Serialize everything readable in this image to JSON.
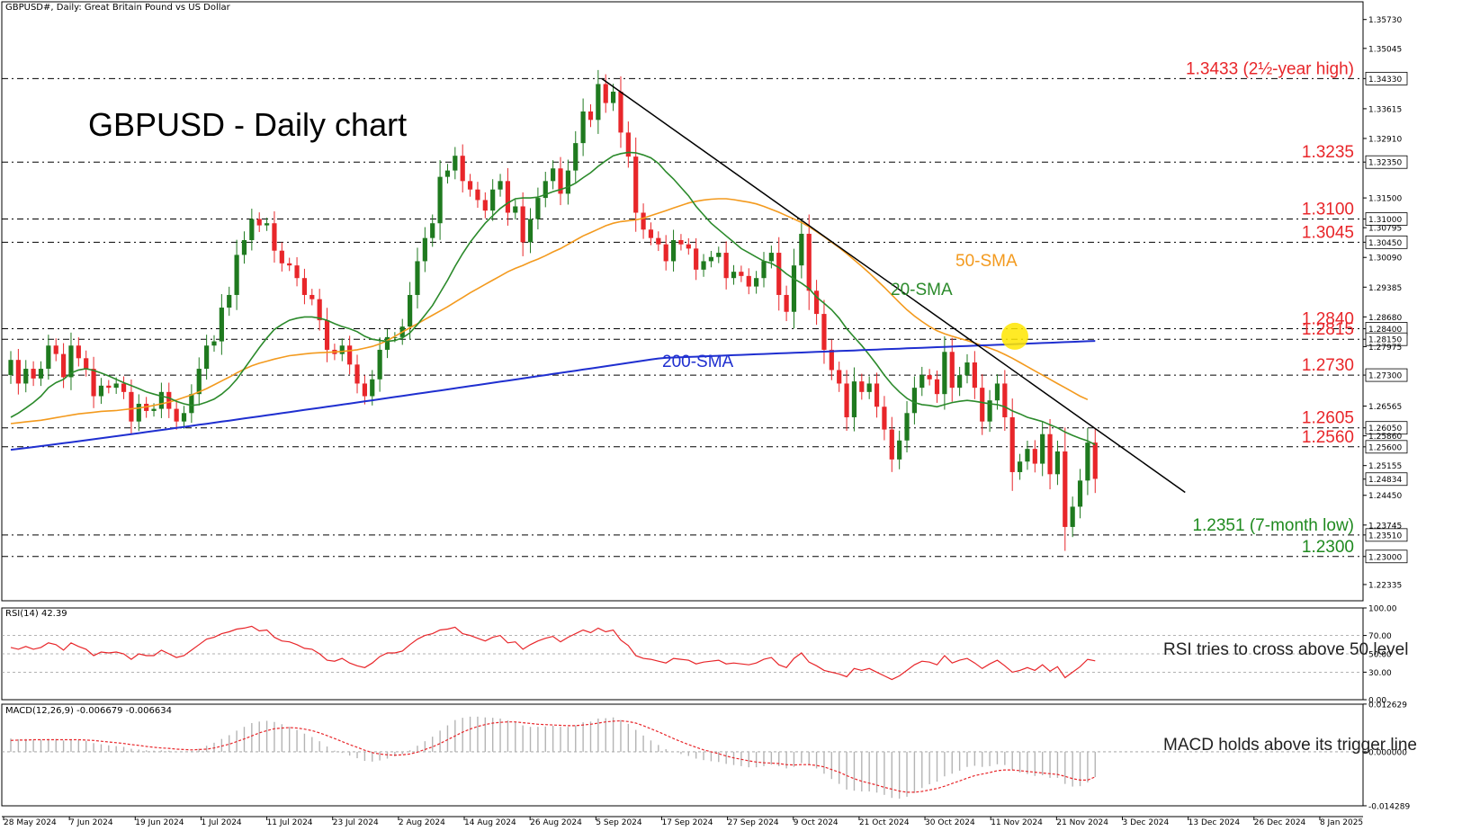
{
  "header": {
    "main": "GBPUSD#, Daily:  Great Britain Pound vs US Dollar",
    "rsi": "RSI(14) 42.39",
    "macd": "MACD(12,26,9) -0.006679 -0.006634"
  },
  "title": "GBPUSD - Daily chart",
  "annotations": {
    "sma20": "20-SMA",
    "sma50": "50-SMA",
    "sma200": "200-SMA",
    "rsi_note": "RSI tries to cross above 50 level",
    "macd_note": "MACD holds above its trigger line"
  },
  "colors": {
    "bull": "#1f7a1f",
    "bear": "#e8262a",
    "sma20": "#2b8a2b",
    "sma50": "#f39a1e",
    "sma200": "#1f2fd0",
    "level_red": "#e8262a",
    "level_green": "#1f8a1f",
    "rsi": "#e8262a",
    "macd_hist": "#b4b4b4",
    "macd_signal": "#e8262a",
    "highlight": "#ffe600"
  },
  "chart_data": {
    "type": "candlestick",
    "symbol": "GBPUSD#",
    "timeframe": "Daily",
    "ylim": [
      1.2195,
      1.3615
    ],
    "price_ticks": [
      "1.35730",
      "1.35045",
      "1.34330",
      "1.33615",
      "1.32910",
      "1.32350",
      "1.31500",
      "1.31000",
      "1.30795",
      "1.30450",
      "1.30090",
      "1.29385",
      "1.28680",
      "1.28400",
      "1.28150",
      "1.27975",
      "1.27300",
      "1.26565",
      "1.26050",
      "1.25860",
      "1.25600",
      "1.25155",
      "1.24834",
      "1.24450",
      "1.23745",
      "1.23510",
      "1.23000",
      "1.22335"
    ],
    "x_dates": [
      "28 May 2024",
      "7 Jun 2024",
      "19 Jun 2024",
      "1 Jul 2024",
      "11 Jul 2024",
      "23 Jul 2024",
      "2 Aug 2024",
      "14 Aug 2024",
      "26 Aug 2024",
      "5 Sep 2024",
      "17 Sep 2024",
      "27 Sep 2024",
      "9 Oct 2024",
      "21 Oct 2024",
      "30 Oct 2024",
      "11 Nov 2024",
      "21 Nov 2024",
      "3 Dec 2024",
      "13 Dec 2024",
      "26 Dec 2024",
      "8 Jan 2025"
    ],
    "levels": [
      {
        "value": 1.3433,
        "label": "1.3433 (2½-year high)",
        "color": "red"
      },
      {
        "value": 1.3235,
        "label": "1.3235",
        "color": "red"
      },
      {
        "value": 1.31,
        "label": "1.3100",
        "color": "red"
      },
      {
        "value": 1.3045,
        "label": "1.3045",
        "color": "red"
      },
      {
        "value": 1.284,
        "label": "1.2840",
        "color": "red"
      },
      {
        "value": 1.2815,
        "label": "1.2815",
        "color": "red"
      },
      {
        "value": 1.273,
        "label": "1.2730",
        "color": "red"
      },
      {
        "value": 1.2605,
        "label": "1.2605",
        "color": "red"
      },
      {
        "value": 1.256,
        "label": "1.2560",
        "color": "red"
      },
      {
        "value": 1.2351,
        "label": "1.2351 (7-month low)",
        "color": "green"
      },
      {
        "value": 1.23,
        "label": "1.2300",
        "color": "green"
      }
    ],
    "current_price": "1.24834",
    "closes": [
      1.2766,
      1.271,
      1.2745,
      1.2722,
      1.2745,
      1.28,
      1.278,
      1.2725,
      1.28,
      1.277,
      1.2745,
      1.268,
      1.2705,
      1.27,
      1.271,
      1.269,
      1.262,
      1.2662,
      1.2645,
      1.265,
      1.269,
      1.265,
      1.262,
      1.264,
      1.2685,
      1.2745,
      1.28,
      1.281,
      1.289,
      1.292,
      1.3015,
      1.305,
      1.31,
      1.3085,
      1.309,
      1.3025,
      1.2995,
      1.299,
      1.296,
      1.292,
      1.291,
      1.286,
      1.279,
      1.278,
      1.28,
      1.2755,
      1.271,
      1.268,
      1.272,
      1.279,
      1.282,
      1.282,
      1.2845,
      1.292,
      1.3,
      1.3055,
      1.309,
      1.32,
      1.3215,
      1.325,
      1.319,
      1.317,
      1.3145,
      1.312,
      1.317,
      1.319,
      1.3115,
      1.313,
      1.3045,
      1.31,
      1.315,
      1.319,
      1.322,
      1.316,
      1.3215,
      1.328,
      1.3355,
      1.3335,
      1.342,
      1.3375,
      1.3402,
      1.3305,
      1.3248,
      1.3115,
      1.3075,
      1.3055,
      1.304,
      1.3,
      1.305,
      1.304,
      1.303,
      1.298,
      1.3,
      1.301,
      1.302,
      1.296,
      1.2975,
      1.2965,
      1.294,
      1.296,
      1.3,
      1.302,
      1.292,
      1.288,
      1.299,
      1.3065,
      1.293,
      1.2875,
      1.279,
      1.2742,
      1.271,
      1.263,
      1.2715,
      1.269,
      1.271,
      1.2655,
      1.2601,
      1.253,
      1.2575,
      1.264,
      1.27,
      1.273,
      1.272,
      1.2685,
      1.2785,
      1.27,
      1.273,
      1.276,
      1.27,
      1.262,
      1.267,
      1.271,
      1.263,
      1.25,
      1.2525,
      1.2555,
      1.252,
      1.259,
      1.2495,
      1.2549,
      1.237,
      1.2418,
      1.248,
      1.257,
      1.2484
    ],
    "sma20": [
      1.263,
      1.264,
      1.2652,
      1.2665,
      1.268,
      1.27,
      1.2712,
      1.272,
      1.2735,
      1.2742,
      1.2745,
      1.2741,
      1.2735,
      1.2728,
      1.272,
      1.2712,
      1.2705,
      1.2698,
      1.269,
      1.2685,
      1.268,
      1.2676,
      1.2668,
      1.2662,
      1.2658,
      1.266,
      1.2666,
      1.2673,
      1.2685,
      1.27,
      1.272,
      1.2745,
      1.277,
      1.2795,
      1.2818,
      1.2838,
      1.285,
      1.286,
      1.2865,
      1.2868,
      1.2868,
      1.2865,
      1.286,
      1.2852,
      1.2845,
      1.284,
      1.2833,
      1.2822,
      1.2815,
      1.2812,
      1.281,
      1.2812,
      1.2818,
      1.283,
      1.285,
      1.2872,
      1.2895,
      1.2925,
      1.2955,
      1.2988,
      1.3018,
      1.3045,
      1.3068,
      1.309,
      1.3108,
      1.3125,
      1.3138,
      1.3148,
      1.315,
      1.315,
      1.3152,
      1.3158,
      1.3165,
      1.317,
      1.3176,
      1.3185,
      1.3198,
      1.321,
      1.3225,
      1.3238,
      1.325,
      1.3255,
      1.3258,
      1.3257,
      1.3252,
      1.3245,
      1.3232,
      1.3212,
      1.3195,
      1.3175,
      1.3155,
      1.313,
      1.311,
      1.309,
      1.3075,
      1.306,
      1.3045,
      1.303,
      1.302,
      1.301,
      1.3,
      1.2995,
      1.2985,
      1.297,
      1.2958,
      1.2948,
      1.2935,
      1.2915,
      1.29,
      1.2885,
      1.2865,
      1.284,
      1.282,
      1.28,
      1.2778,
      1.2755,
      1.273,
      1.2708,
      1.269,
      1.2675,
      1.2665,
      1.266,
      1.2658,
      1.2655,
      1.266,
      1.2665,
      1.2668,
      1.267,
      1.2668,
      1.2665,
      1.2662,
      1.266,
      1.2655,
      1.2645,
      1.2638,
      1.263,
      1.2625,
      1.262,
      1.2612,
      1.2605,
      1.2595,
      1.2587,
      1.258,
      1.2574,
      1.2565
    ],
    "sma50": [
      1.2615,
      1.2617,
      1.2619,
      1.2621,
      1.2623,
      1.2626,
      1.2629,
      1.2632,
      1.2635,
      1.2638,
      1.264,
      1.2642,
      1.2644,
      1.2645,
      1.2646,
      1.2648,
      1.265,
      1.2652,
      1.2655,
      1.2658,
      1.2662,
      1.2666,
      1.2671,
      1.2677,
      1.2683,
      1.269,
      1.2698,
      1.2707,
      1.2716,
      1.2725,
      1.2735,
      1.2744,
      1.2752,
      1.2758,
      1.2763,
      1.2768,
      1.2772,
      1.2776,
      1.2778,
      1.278,
      1.2782,
      1.2783,
      1.2784,
      1.2785,
      1.2786,
      1.2788,
      1.279,
      1.2794,
      1.2798,
      1.2804,
      1.2812,
      1.2822,
      1.2832,
      1.2842,
      1.2852,
      1.2862,
      1.2872,
      1.2882,
      1.2892,
      1.2903,
      1.2914,
      1.2925,
      1.2935,
      1.2945,
      1.2955,
      1.2965,
      1.2975,
      1.2983,
      1.299,
      1.2998,
      1.3005,
      1.3013,
      1.3022,
      1.303,
      1.304,
      1.305,
      1.306,
      1.3068,
      1.3076,
      1.3084,
      1.309,
      1.3094,
      1.3096,
      1.3098,
      1.3102,
      1.3108,
      1.3114,
      1.312,
      1.3126,
      1.3132,
      1.3138,
      1.3142,
      1.3145,
      1.3147,
      1.3148,
      1.3148,
      1.3146,
      1.3143,
      1.314,
      1.3136,
      1.313,
      1.3123,
      1.3116,
      1.3108,
      1.31,
      1.3092,
      1.3082,
      1.307,
      1.3058,
      1.3045,
      1.3032,
      1.3018,
      1.3003,
      1.2988,
      1.2972,
      1.2955,
      1.2938,
      1.292,
      1.2902,
      1.2885,
      1.287,
      1.2857,
      1.2845,
      1.2835,
      1.2828,
      1.2822,
      1.2817,
      1.2812,
      1.2806,
      1.28,
      1.2794,
      1.2787,
      1.2779,
      1.277,
      1.276,
      1.275,
      1.274,
      1.273,
      1.272,
      1.271,
      1.27,
      1.269,
      1.268,
      1.2672
    ],
    "sma200_start": 1.2553,
    "sma200_end": 1.2811,
    "rsi_ylim": [
      0,
      100
    ],
    "rsi_ticks": [
      "100.00",
      "70.00",
      "50.00",
      "30.00",
      "0.00"
    ],
    "rsi_values": [
      57,
      55,
      58,
      55,
      57,
      62,
      60,
      54,
      62,
      58,
      55,
      48,
      52,
      51,
      52,
      50,
      44,
      50,
      48,
      48,
      54,
      50,
      46,
      48,
      54,
      60,
      66,
      68,
      72,
      74,
      77,
      78,
      80,
      75,
      76,
      68,
      64,
      63,
      60,
      56,
      55,
      50,
      43,
      42,
      45,
      40,
      37,
      35,
      40,
      47,
      51,
      51,
      53,
      60,
      66,
      70,
      72,
      76,
      77,
      79,
      72,
      70,
      67,
      64,
      68,
      70,
      62,
      63,
      55,
      60,
      64,
      67,
      69,
      63,
      68,
      72,
      76,
      73,
      78,
      74,
      76,
      65,
      59,
      48,
      45,
      44,
      42,
      40,
      45,
      44,
      43,
      39,
      41,
      42,
      43,
      39,
      40,
      39,
      38,
      40,
      44,
      46,
      38,
      35,
      45,
      51,
      41,
      37,
      32,
      30,
      28,
      25,
      34,
      32,
      34,
      30,
      26,
      22,
      26,
      32,
      38,
      42,
      41,
      38,
      48,
      40,
      43,
      45,
      40,
      34,
      39,
      43,
      37,
      30,
      32,
      35,
      32,
      38,
      31,
      36,
      24,
      30,
      36,
      44,
      42.39
    ],
    "macd_ticks": [
      "0.012629",
      "0.000000",
      "-0.014289"
    ],
    "macd_ylim": [
      -0.0143,
      0.0126
    ],
    "macd_hist": [
      0.0035,
      0.0033,
      0.0034,
      0.0032,
      0.0032,
      0.0034,
      0.0034,
      0.003,
      0.0032,
      0.0031,
      0.0029,
      0.0023,
      0.002,
      0.0017,
      0.0015,
      0.0013,
      0.0008,
      0.0006,
      0.0004,
      0.0003,
      0.0004,
      0.0003,
      0.0001,
      0.0,
      0.0002,
      0.0008,
      0.0016,
      0.0024,
      0.0034,
      0.0044,
      0.0056,
      0.0066,
      0.0076,
      0.008,
      0.0082,
      0.0079,
      0.0073,
      0.0066,
      0.0058,
      0.0048,
      0.0039,
      0.0028,
      0.0014,
      0.0003,
      -0.0003,
      -0.001,
      -0.0017,
      -0.0024,
      -0.0026,
      -0.0023,
      -0.0018,
      -0.0012,
      -0.0006,
      0.0004,
      0.0016,
      0.0028,
      0.004,
      0.0056,
      0.007,
      0.0084,
      0.009,
      0.0093,
      0.0093,
      0.0091,
      0.009,
      0.0088,
      0.0083,
      0.0079,
      0.007,
      0.0066,
      0.0066,
      0.0067,
      0.0069,
      0.0066,
      0.0066,
      0.007,
      0.0078,
      0.008,
      0.0088,
      0.0089,
      0.0091,
      0.0084,
      0.0074,
      0.0058,
      0.0043,
      0.003,
      0.0018,
      0.0007,
      0.0,
      -0.0006,
      -0.0011,
      -0.0018,
      -0.0022,
      -0.0025,
      -0.0027,
      -0.0032,
      -0.0035,
      -0.0038,
      -0.0041,
      -0.0041,
      -0.0038,
      -0.0034,
      -0.0038,
      -0.0044,
      -0.004,
      -0.003,
      -0.0035,
      -0.0044,
      -0.0058,
      -0.0072,
      -0.0085,
      -0.01,
      -0.0103,
      -0.0105,
      -0.0105,
      -0.0108,
      -0.0114,
      -0.0122,
      -0.0124,
      -0.0119,
      -0.0109,
      -0.0096,
      -0.0086,
      -0.0079,
      -0.0065,
      -0.0058,
      -0.005,
      -0.004,
      -0.0037,
      -0.004,
      -0.0038,
      -0.0033,
      -0.0035,
      -0.0047,
      -0.0055,
      -0.0059,
      -0.0064,
      -0.0062,
      -0.0069,
      -0.0069,
      -0.0085,
      -0.0092,
      -0.0091,
      -0.0081,
      -0.006679
    ],
    "macd_signal": [
      0.003,
      0.0031,
      0.0031,
      0.0032,
      0.0032,
      0.0032,
      0.0032,
      0.0032,
      0.0032,
      0.0032,
      0.0031,
      0.003,
      0.0028,
      0.0026,
      0.0024,
      0.0022,
      0.0019,
      0.0017,
      0.0014,
      0.0012,
      0.001,
      0.0009,
      0.0007,
      0.0006,
      0.0005,
      0.0006,
      0.0007,
      0.001,
      0.0015,
      0.002,
      0.0027,
      0.0034,
      0.0042,
      0.005,
      0.0056,
      0.0061,
      0.0063,
      0.0064,
      0.0063,
      0.006,
      0.0056,
      0.005,
      0.0043,
      0.0035,
      0.0027,
      0.0019,
      0.0012,
      0.0004,
      -0.0002,
      -0.0006,
      -0.0008,
      -0.0009,
      -0.0008,
      -0.0006,
      -0.0001,
      0.0006,
      0.0013,
      0.0022,
      0.0032,
      0.0042,
      0.0052,
      0.006,
      0.0067,
      0.0072,
      0.0076,
      0.0078,
      0.0079,
      0.0079,
      0.0077,
      0.0075,
      0.0073,
      0.0072,
      0.0071,
      0.007,
      0.0069,
      0.0069,
      0.0071,
      0.0073,
      0.0076,
      0.0079,
      0.0081,
      0.0082,
      0.008,
      0.0076,
      0.0069,
      0.0061,
      0.0053,
      0.0044,
      0.0035,
      0.0027,
      0.0019,
      0.0012,
      0.0005,
      0.0,
      -0.0005,
      -0.0011,
      -0.0016,
      -0.002,
      -0.0024,
      -0.0027,
      -0.0029,
      -0.003,
      -0.0031,
      -0.0034,
      -0.0035,
      -0.0034,
      -0.0034,
      -0.0036,
      -0.004,
      -0.0047,
      -0.0054,
      -0.0063,
      -0.0071,
      -0.0078,
      -0.0083,
      -0.0088,
      -0.0094,
      -0.0099,
      -0.0104,
      -0.0107,
      -0.0107,
      -0.0105,
      -0.0101,
      -0.0097,
      -0.0091,
      -0.0084,
      -0.0077,
      -0.007,
      -0.0063,
      -0.0059,
      -0.0055,
      -0.005,
      -0.0048,
      -0.0048,
      -0.005,
      -0.0052,
      -0.0054,
      -0.0056,
      -0.0058,
      -0.006,
      -0.0065,
      -0.0071,
      -0.0075,
      -0.0075,
      -0.006634
    ]
  }
}
